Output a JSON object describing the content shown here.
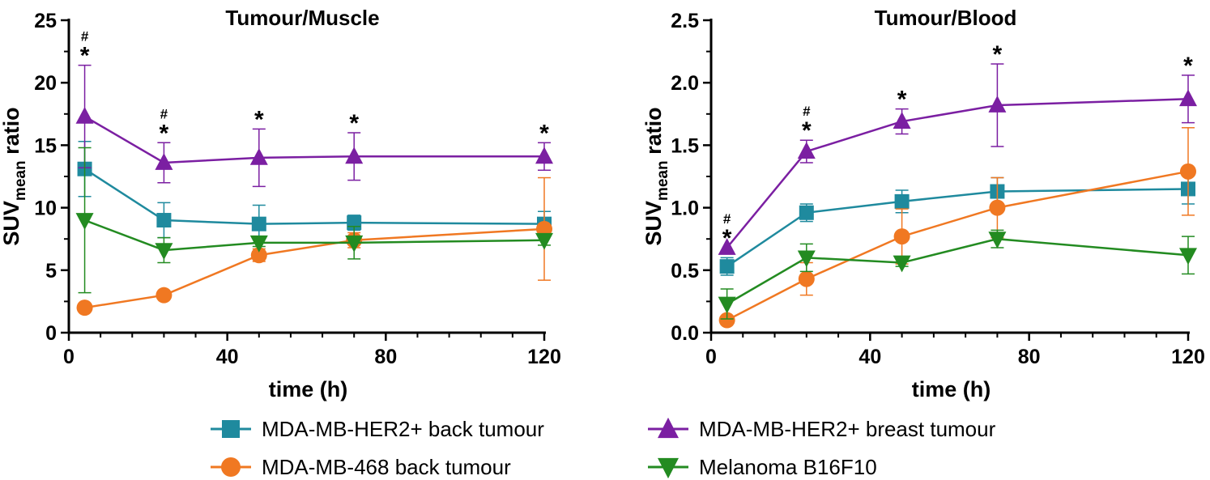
{
  "chart_data": [
    {
      "type": "line",
      "title": "Tumour/Muscle",
      "xlabel": "time (h)",
      "ylabel": "SUV",
      "ylabel_sub": "mean",
      "ylabel_suffix": " ratio",
      "xlim": [
        0,
        120
      ],
      "ylim": [
        0,
        25
      ],
      "xticks": [
        0,
        40,
        80,
        120
      ],
      "xtick_labels": [
        "0",
        "40",
        "80",
        "120"
      ],
      "yticks": [
        0,
        5,
        10,
        15,
        20,
        25
      ],
      "ytick_labels": [
        "0",
        "5",
        "10",
        "15",
        "20",
        "25"
      ],
      "x": [
        4,
        24,
        48,
        72,
        120
      ],
      "series": [
        {
          "name": "MDA-MB-HER2+ back tumour",
          "color": "#1f8a9e",
          "marker": "square",
          "values": [
            13.1,
            9.0,
            8.7,
            8.8,
            8.7
          ],
          "err": [
            2.2,
            1.4,
            1.5,
            0.6,
            1.0
          ]
        },
        {
          "name": "MDA-MB-468 back tumour",
          "color": "#f07822",
          "marker": "circle",
          "values": [
            2.0,
            3.0,
            6.2,
            7.4,
            8.3
          ],
          "err": [
            0.0,
            0.0,
            0.5,
            0.6,
            4.1
          ]
        },
        {
          "name": "MDA-MB-HER2+ breast tumour",
          "color": "#7b1fa2",
          "marker": "triangle-up",
          "values": [
            17.3,
            13.6,
            14.0,
            14.1,
            14.1
          ],
          "err": [
            4.1,
            1.6,
            2.3,
            1.9,
            1.1
          ]
        },
        {
          "name": "Melanoma B16F10",
          "color": "#238b21",
          "marker": "triangle-down",
          "values": [
            9.0,
            6.6,
            7.2,
            7.2,
            7.4
          ],
          "err": [
            5.8,
            1.0,
            0.3,
            1.3,
            0.4
          ]
        }
      ],
      "annotations": [
        {
          "x": 4,
          "star": "*",
          "hash": "#"
        },
        {
          "x": 24,
          "star": "*",
          "hash": "#"
        },
        {
          "x": 48,
          "star": "*",
          "hash": ""
        },
        {
          "x": 72,
          "star": "*",
          "hash": ""
        },
        {
          "x": 120,
          "star": "*",
          "hash": ""
        }
      ]
    },
    {
      "type": "line",
      "title": "Tumour/Blood",
      "xlabel": "time (h)",
      "ylabel": "SUV",
      "ylabel_sub": "mean",
      "ylabel_suffix": " ratio",
      "xlim": [
        0,
        120
      ],
      "ylim": [
        0,
        2.5
      ],
      "xticks": [
        0,
        40,
        80,
        120
      ],
      "xtick_labels": [
        "0",
        "40",
        "80",
        "120"
      ],
      "yticks": [
        0,
        0.5,
        1.0,
        1.5,
        2.0,
        2.5
      ],
      "ytick_labels": [
        "0.0",
        "0.5",
        "1.0",
        "1.5",
        "2.0",
        "2.5"
      ],
      "x": [
        4,
        24,
        48,
        72,
        120
      ],
      "series": [
        {
          "name": "MDA-MB-HER2+ back tumour",
          "color": "#1f8a9e",
          "marker": "square",
          "values": [
            0.53,
            0.96,
            1.05,
            1.13,
            1.15
          ],
          "err": [
            0.07,
            0.07,
            0.09,
            0.11,
            0.12
          ]
        },
        {
          "name": "MDA-MB-468 back tumour",
          "color": "#f07822",
          "marker": "circle",
          "values": [
            0.1,
            0.43,
            0.77,
            1.0,
            1.29
          ],
          "err": [
            0.0,
            0.13,
            0.22,
            0.24,
            0.35
          ]
        },
        {
          "name": "MDA-MB-HER2+ breast tumour",
          "color": "#7b1fa2",
          "marker": "triangle-up",
          "values": [
            0.68,
            1.45,
            1.69,
            1.82,
            1.87
          ],
          "err": [
            0.0,
            0.09,
            0.1,
            0.33,
            0.19
          ]
        },
        {
          "name": "Melanoma B16F10",
          "color": "#238b21",
          "marker": "triangle-down",
          "values": [
            0.23,
            0.6,
            0.56,
            0.75,
            0.62
          ],
          "err": [
            0.12,
            0.11,
            0.03,
            0.07,
            0.15
          ]
        }
      ],
      "annotations": [
        {
          "x": 4,
          "star": "*",
          "hash": "#"
        },
        {
          "x": 24,
          "star": "*",
          "hash": "#"
        },
        {
          "x": 48,
          "star": "*",
          "hash": ""
        },
        {
          "x": 72,
          "star": "*",
          "hash": ""
        },
        {
          "x": 120,
          "star": "*",
          "hash": ""
        }
      ]
    }
  ],
  "legend": [
    {
      "label": "MDA-MB-HER2+ back tumour",
      "color": "#1f8a9e",
      "marker": "square"
    },
    {
      "label": "MDA-MB-HER2+ breast tumour",
      "color": "#7b1fa2",
      "marker": "triangle-up"
    },
    {
      "label": "MDA-MB-468 back tumour",
      "color": "#f07822",
      "marker": "circle"
    },
    {
      "label": "Melanoma B16F10",
      "color": "#238b21",
      "marker": "triangle-down"
    }
  ]
}
